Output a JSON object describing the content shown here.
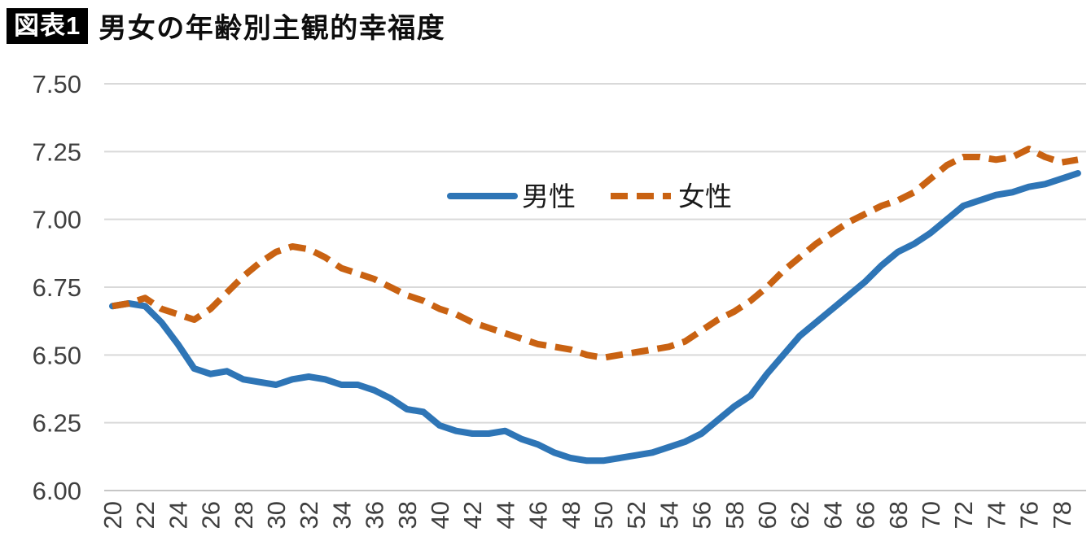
{
  "header": {
    "badge": "図表1",
    "title": "男女の年齢別主観的幸福度"
  },
  "chart_data": {
    "type": "line",
    "title": "男女の年齢別主観的幸福度",
    "xlabel": "",
    "ylabel": "",
    "x": [
      20,
      21,
      22,
      23,
      24,
      25,
      26,
      27,
      28,
      29,
      30,
      31,
      32,
      33,
      34,
      35,
      36,
      37,
      38,
      39,
      40,
      41,
      42,
      43,
      44,
      45,
      46,
      47,
      48,
      49,
      50,
      51,
      52,
      53,
      54,
      55,
      56,
      57,
      58,
      59,
      60,
      61,
      62,
      63,
      64,
      65,
      66,
      67,
      68,
      69,
      70,
      71,
      72,
      73,
      74,
      75,
      76,
      77,
      78,
      79
    ],
    "x_tick_labels": [
      "20",
      "22",
      "24",
      "26",
      "28",
      "30",
      "32",
      "34",
      "36",
      "38",
      "40",
      "42",
      "44",
      "46",
      "48",
      "50",
      "52",
      "54",
      "56",
      "58",
      "60",
      "62",
      "64",
      "66",
      "68",
      "70",
      "72",
      "74",
      "76",
      "78"
    ],
    "ylim": [
      6.0,
      7.5
    ],
    "y_tick_labels": [
      "6.00",
      "6.25",
      "6.50",
      "6.75",
      "7.00",
      "7.25",
      "7.50"
    ],
    "grid": true,
    "legend_position": "inside-top-center",
    "series": [
      {
        "name": "男性",
        "style": "solid",
        "color": "#2E75B6",
        "values": [
          6.68,
          6.69,
          6.68,
          6.62,
          6.54,
          6.45,
          6.43,
          6.44,
          6.41,
          6.4,
          6.39,
          6.41,
          6.42,
          6.41,
          6.39,
          6.39,
          6.37,
          6.34,
          6.3,
          6.29,
          6.24,
          6.22,
          6.21,
          6.21,
          6.22,
          6.19,
          6.17,
          6.14,
          6.12,
          6.11,
          6.11,
          6.12,
          6.13,
          6.14,
          6.16,
          6.18,
          6.21,
          6.26,
          6.31,
          6.35,
          6.43,
          6.5,
          6.57,
          6.62,
          6.67,
          6.72,
          6.77,
          6.83,
          6.88,
          6.91,
          6.95,
          7.0,
          7.05,
          7.07,
          7.09,
          7.1,
          7.12,
          7.13,
          7.15,
          7.17
        ]
      },
      {
        "name": "女性",
        "style": "dashed",
        "color": "#C96212",
        "values": [
          6.68,
          6.69,
          6.71,
          6.67,
          6.65,
          6.63,
          6.67,
          6.73,
          6.79,
          6.84,
          6.88,
          6.9,
          6.89,
          6.86,
          6.82,
          6.8,
          6.78,
          6.75,
          6.72,
          6.7,
          6.67,
          6.65,
          6.62,
          6.6,
          6.58,
          6.56,
          6.54,
          6.53,
          6.52,
          6.5,
          6.49,
          6.5,
          6.51,
          6.52,
          6.53,
          6.55,
          6.59,
          6.63,
          6.66,
          6.7,
          6.75,
          6.81,
          6.86,
          6.91,
          6.95,
          6.99,
          7.02,
          7.05,
          7.07,
          7.1,
          7.15,
          7.2,
          7.23,
          7.23,
          7.22,
          7.23,
          7.26,
          7.23,
          7.21,
          7.22
        ]
      }
    ],
    "colors": {
      "gridline": "#D9D9D9",
      "axis_line": "#C6C6C6",
      "tick_text": "#3F3F3F",
      "legend_text": "#1A1A1A"
    }
  }
}
